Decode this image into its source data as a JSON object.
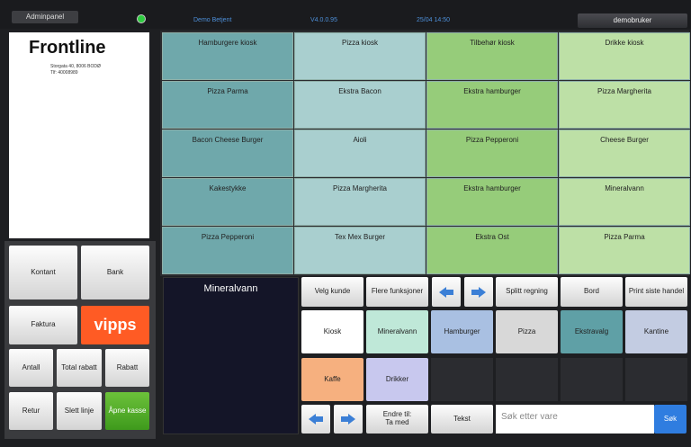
{
  "header": {
    "admin": "Adminpanel",
    "staff": "Demo Betjent",
    "version": "V4.0.0.95",
    "datetime": "25/04 14:50",
    "user": "demobruker"
  },
  "receipt": {
    "logo": "Frontline",
    "address": "Storgata 40, 8006 BODØ",
    "phone": "Tlf: 40008989"
  },
  "payment_buttons": [
    "Kontant",
    "Bank",
    "Faktura",
    "vipps"
  ],
  "action_buttons": [
    "Antall",
    "Total rabatt",
    "Rabatt",
    "Retur",
    "Slett linje",
    "Åpne kasse"
  ],
  "product_grid": [
    [
      "Hamburgere kiosk",
      "Pizza kiosk",
      "Tilbehør kiosk",
      "Drikke kiosk"
    ],
    [
      "Pizza Parma",
      "Ekstra Bacon",
      "Ekstra hamburger",
      "Pizza Margherita"
    ],
    [
      "Bacon Cheese Burger",
      "Aioli",
      "Pizza Pepperoni",
      "Cheese Burger"
    ],
    [
      "Kakestykke",
      "Pizza Margherita",
      "Ekstra hamburger",
      "Mineralvann"
    ],
    [
      "Pizza Pepperoni",
      "Tex Mex Burger",
      "Ekstra Ost",
      "Pizza Parma"
    ]
  ],
  "display": "Mineralvann",
  "toolbar": [
    "Velg kunde",
    "Flere funksjoner",
    "Splitt regning",
    "Bord",
    "Print siste handel"
  ],
  "categories": [
    "Kiosk",
    "Mineralvann",
    "Hamburger",
    "Pizza",
    "Ekstravalg",
    "Kantine",
    "Kaffe",
    "Drikker"
  ],
  "bottom": {
    "change": "Endre til:\nTa med",
    "text": "Tekst",
    "search_placeholder": "Søk etter vare",
    "search": "Søk"
  }
}
